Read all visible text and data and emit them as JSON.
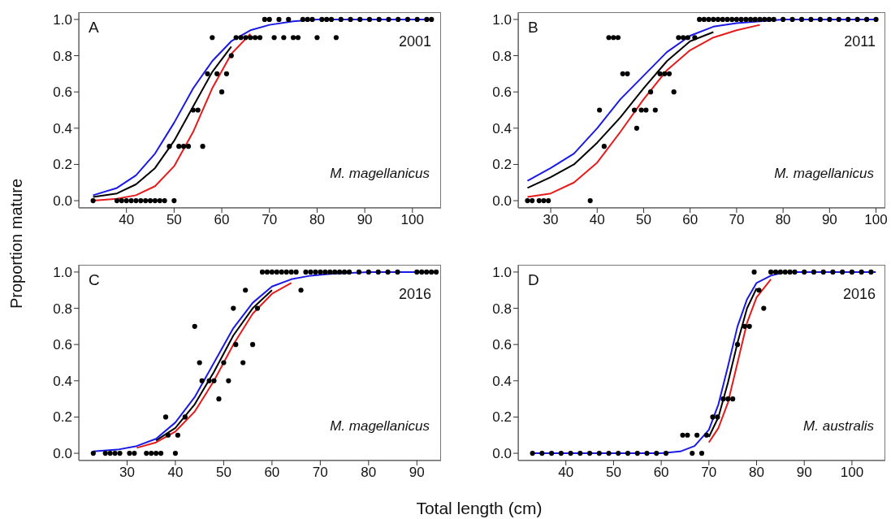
{
  "chart_data": [
    {
      "type": "scatter",
      "ylabel": "Proportion mature",
      "annotations": [
        "A",
        "2001",
        "M. magellanicus"
      ],
      "xlim": [
        30,
        106
      ],
      "xticks": [
        40,
        50,
        60,
        70,
        80,
        90,
        100
      ],
      "ylim": [
        -0.04,
        1.04
      ],
      "yticks": [
        {
          "value": 0,
          "label": "0.0"
        },
        {
          "value": 0.2,
          "label": "0.2"
        },
        {
          "value": 0.4,
          "label": "0.4"
        },
        {
          "value": 0.6,
          "label": "0.6"
        },
        {
          "value": 0.8,
          "label": "0.8"
        },
        {
          "value": 1,
          "label": "1.0"
        }
      ],
      "line_style": "solid",
      "series": [
        {
          "type": "line",
          "color": "#e61a1a",
          "x": [
            33,
            38,
            42,
            46,
            50,
            54,
            58,
            62,
            66
          ],
          "values": [
            0.0,
            0.01,
            0.03,
            0.08,
            0.19,
            0.38,
            0.62,
            0.81,
            0.92
          ]
        },
        {
          "type": "line",
          "color": "#000000",
          "x": [
            33,
            38,
            42,
            46,
            50,
            54,
            58,
            62
          ],
          "values": [
            0.02,
            0.04,
            0.09,
            0.18,
            0.33,
            0.52,
            0.71,
            0.85
          ]
        },
        {
          "type": "line",
          "color": "#1a1ae6",
          "x": [
            33,
            38,
            42,
            46,
            50,
            54,
            58,
            62,
            66,
            70,
            75,
            80,
            90,
            104
          ],
          "values": [
            0.03,
            0.07,
            0.14,
            0.26,
            0.43,
            0.62,
            0.77,
            0.88,
            0.94,
            0.97,
            0.99,
            1.0,
            1.0,
            1.0
          ]
        },
        {
          "color": "#000000",
          "marker": "circle",
          "x": [
            33,
            38,
            39,
            40,
            41,
            42,
            43,
            44,
            45,
            46,
            47,
            48,
            50,
            49,
            51,
            52,
            53,
            56,
            54,
            55,
            60,
            57,
            59,
            61,
            62,
            58,
            63,
            64,
            65,
            66,
            67,
            68,
            71,
            73,
            75,
            76,
            80,
            84,
            69,
            70,
            72,
            74,
            77,
            78,
            79,
            81,
            82,
            83,
            85,
            87,
            89,
            91,
            93,
            95,
            97,
            99,
            101,
            103,
            104
          ],
          "values": [
            0,
            0,
            0,
            0,
            0,
            0,
            0,
            0,
            0,
            0,
            0,
            0,
            0,
            0.3,
            0.3,
            0.3,
            0.3,
            0.3,
            0.5,
            0.5,
            0.6,
            0.7,
            0.7,
            0.7,
            0.8,
            0.9,
            0.9,
            0.9,
            0.9,
            0.9,
            0.9,
            0.9,
            0.9,
            0.9,
            0.9,
            0.9,
            0.9,
            0.9,
            1,
            1,
            1,
            1,
            1,
            1,
            1,
            1,
            1,
            1,
            1,
            1,
            1,
            1,
            1,
            1,
            1,
            1,
            1,
            1,
            1
          ]
        }
      ]
    },
    {
      "type": "scatter",
      "annotations": [
        "B",
        "2011",
        "M. magellanicus"
      ],
      "xlim": [
        23,
        102
      ],
      "xticks": [
        30,
        40,
        50,
        60,
        70,
        80,
        90,
        100
      ],
      "ylim": [
        -0.04,
        1.04
      ],
      "yticks": [
        {
          "value": 0,
          "label": "0.0"
        },
        {
          "value": 0.2,
          "label": "0.2"
        },
        {
          "value": 0.4,
          "label": "0.4"
        },
        {
          "value": 0.6,
          "label": "0.6"
        },
        {
          "value": 0.8,
          "label": "0.8"
        },
        {
          "value": 1,
          "label": "1.0"
        }
      ],
      "line_style": "solid",
      "series": [
        {
          "type": "line",
          "color": "#e61a1a",
          "x": [
            25,
            30,
            35,
            40,
            45,
            50,
            55,
            60,
            65,
            70,
            75
          ],
          "values": [
            0.02,
            0.04,
            0.1,
            0.21,
            0.38,
            0.56,
            0.72,
            0.83,
            0.9,
            0.94,
            0.97
          ]
        },
        {
          "type": "line",
          "color": "#000000",
          "x": [
            25,
            30,
            35,
            40,
            45,
            50,
            55,
            60,
            65
          ],
          "values": [
            0.07,
            0.13,
            0.2,
            0.32,
            0.46,
            0.62,
            0.77,
            0.88,
            0.93
          ]
        },
        {
          "type": "line",
          "color": "#1a1ae6",
          "x": [
            25,
            30,
            35,
            40,
            45,
            50,
            55,
            60,
            65,
            70,
            75,
            80,
            90,
            100
          ],
          "values": [
            0.11,
            0.18,
            0.26,
            0.4,
            0.56,
            0.69,
            0.82,
            0.91,
            0.96,
            0.98,
            0.99,
            1.0,
            1.0,
            1.0
          ]
        },
        {
          "color": "#000000",
          "marker": "circle",
          "x": [
            25,
            26,
            27.5,
            28.5,
            29.5,
            38.5,
            41.5,
            40.5,
            48,
            49.5,
            50.5,
            52.5,
            48.5,
            51.5,
            56.5,
            45.5,
            46.5,
            53.5,
            54.5,
            55.5,
            42.5,
            43.5,
            44.5,
            57.5,
            58.5,
            59.5,
            61,
            62,
            63,
            64,
            65,
            66,
            67,
            68,
            69,
            70,
            71,
            72,
            73,
            74,
            75,
            76,
            77,
            78,
            80,
            82,
            84,
            86,
            88,
            90,
            92,
            94,
            96,
            98,
            100
          ],
          "values": [
            0,
            0,
            0,
            0,
            0,
            0,
            0.3,
            0.5,
            0.5,
            0.5,
            0.5,
            0.5,
            0.4,
            0.6,
            0.6,
            0.7,
            0.7,
            0.7,
            0.7,
            0.7,
            0.9,
            0.9,
            0.9,
            0.9,
            0.9,
            0.9,
            0.9,
            1,
            1,
            1,
            1,
            1,
            1,
            1,
            1,
            1,
            1,
            1,
            1,
            1,
            1,
            1,
            1,
            1,
            1,
            1,
            1,
            1,
            1,
            1,
            1,
            1,
            1,
            1,
            1
          ]
        }
      ]
    },
    {
      "type": "scatter",
      "xlabel": "Total length (cm)",
      "annotations": [
        "C",
        "2016",
        "M. magellanicus"
      ],
      "xlim": [
        20,
        95
      ],
      "xticks": [
        30,
        40,
        50,
        60,
        70,
        80,
        90
      ],
      "ylim": [
        -0.04,
        1.04
      ],
      "yticks": [
        {
          "value": 0,
          "label": "0.0"
        },
        {
          "value": 0.2,
          "label": "0.2"
        },
        {
          "value": 0.4,
          "label": "0.4"
        },
        {
          "value": 0.6,
          "label": "0.6"
        },
        {
          "value": 0.8,
          "label": "0.8"
        },
        {
          "value": 1,
          "label": "1.0"
        }
      ],
      "line_style": "solid",
      "series": [
        {
          "type": "line",
          "color": "#e61a1a",
          "x": [
            32,
            36,
            40,
            44,
            48,
            52,
            56,
            60,
            64
          ],
          "values": [
            0.03,
            0.06,
            0.12,
            0.23,
            0.4,
            0.6,
            0.77,
            0.88,
            0.94
          ]
        },
        {
          "type": "line",
          "color": "#000000",
          "x": [
            36,
            40,
            44,
            48,
            52,
            56,
            60
          ],
          "values": [
            0.07,
            0.14,
            0.27,
            0.45,
            0.65,
            0.8,
            0.9
          ]
        },
        {
          "type": "line",
          "color": "#1a1ae6",
          "x": [
            23,
            28,
            32,
            36,
            40,
            44,
            48,
            52,
            56,
            60,
            64,
            68,
            72,
            80,
            94
          ],
          "values": [
            0.01,
            0.02,
            0.04,
            0.08,
            0.17,
            0.31,
            0.5,
            0.69,
            0.83,
            0.92,
            0.96,
            0.98,
            0.99,
            1.0,
            1.0
          ]
        },
        {
          "color": "#000000",
          "marker": "circle",
          "x": [
            23,
            25.5,
            26.5,
            27.5,
            28.5,
            30.5,
            31.5,
            34,
            35,
            36,
            37,
            40,
            38,
            42,
            38.5,
            40.5,
            44,
            45,
            50,
            54,
            45.5,
            47,
            48,
            51,
            49,
            52.5,
            56,
            52,
            57,
            54.5,
            66,
            58,
            59,
            60,
            61,
            62,
            63,
            64,
            65,
            67,
            68,
            69,
            70,
            71,
            72,
            73,
            74,
            75,
            76,
            78,
            80,
            82,
            84,
            86,
            90,
            91,
            92,
            93,
            94
          ],
          "values": [
            0,
            0,
            0,
            0,
            0,
            0,
            0,
            0,
            0,
            0,
            0,
            0,
            0.2,
            0.2,
            0.1,
            0.1,
            0.7,
            0.5,
            0.5,
            0.5,
            0.4,
            0.4,
            0.4,
            0.4,
            0.3,
            0.6,
            0.6,
            0.8,
            0.8,
            0.9,
            0.9,
            1,
            1,
            1,
            1,
            1,
            1,
            1,
            1,
            1,
            1,
            1,
            1,
            1,
            1,
            1,
            1,
            1,
            1,
            1,
            1,
            1,
            1,
            1,
            1,
            1,
            1,
            1,
            1
          ]
        }
      ]
    },
    {
      "type": "scatter",
      "annotations": [
        "D",
        "2016",
        "M. australis"
      ],
      "xlim": [
        30,
        107
      ],
      "xticks": [
        40,
        50,
        60,
        70,
        80,
        90,
        100
      ],
      "ylim": [
        -0.04,
        1.04
      ],
      "yticks": [
        {
          "value": 0,
          "label": "0.0"
        },
        {
          "value": 0.2,
          "label": "0.2"
        },
        {
          "value": 0.4,
          "label": "0.4"
        },
        {
          "value": 0.6,
          "label": "0.6"
        },
        {
          "value": 0.8,
          "label": "0.8"
        },
        {
          "value": 1,
          "label": "1.0"
        }
      ],
      "line_style": "solid",
      "series": [
        {
          "type": "line",
          "color": "#e61a1a",
          "x": [
            70,
            72,
            74,
            76,
            78,
            80,
            83
          ],
          "values": [
            0.06,
            0.14,
            0.28,
            0.5,
            0.72,
            0.86,
            0.96
          ]
        },
        {
          "type": "line",
          "color": "#000000",
          "x": [
            70,
            72,
            74,
            76,
            78,
            80
          ],
          "values": [
            0.09,
            0.2,
            0.39,
            0.61,
            0.8,
            0.91
          ]
        },
        {
          "type": "line",
          "color": "#1a1ae6",
          "x": [
            33,
            50,
            60,
            64,
            67,
            70,
            72,
            74,
            76,
            78,
            80,
            83,
            86,
            90,
            105
          ],
          "values": [
            0.0,
            0.0,
            0.0,
            0.01,
            0.04,
            0.13,
            0.27,
            0.48,
            0.7,
            0.85,
            0.94,
            0.98,
            1.0,
            1.0,
            1.0
          ]
        },
        {
          "color": "#000000",
          "marker": "circle",
          "x": [
            33,
            35,
            37,
            39,
            41,
            43,
            45,
            47,
            49,
            51,
            53,
            55,
            57,
            59,
            61,
            66.5,
            68.5,
            64.5,
            65.5,
            67.5,
            69.5,
            70.8,
            71.8,
            73,
            74,
            75,
            76,
            77.5,
            78.5,
            80.5,
            81.5,
            79.5,
            83,
            84,
            85,
            86,
            87,
            88,
            90,
            92,
            94,
            96,
            98,
            100,
            102,
            104
          ],
          "values": [
            0,
            0,
            0,
            0,
            0,
            0,
            0,
            0,
            0,
            0,
            0,
            0,
            0,
            0,
            0,
            0,
            0,
            0.1,
            0.1,
            0.1,
            0.1,
            0.2,
            0.2,
            0.3,
            0.3,
            0.3,
            0.6,
            0.7,
            0.7,
            0.9,
            0.8,
            1,
            1,
            1,
            1,
            1,
            1,
            1,
            1,
            1,
            1,
            1,
            1,
            1,
            1,
            1
          ]
        }
      ]
    }
  ]
}
